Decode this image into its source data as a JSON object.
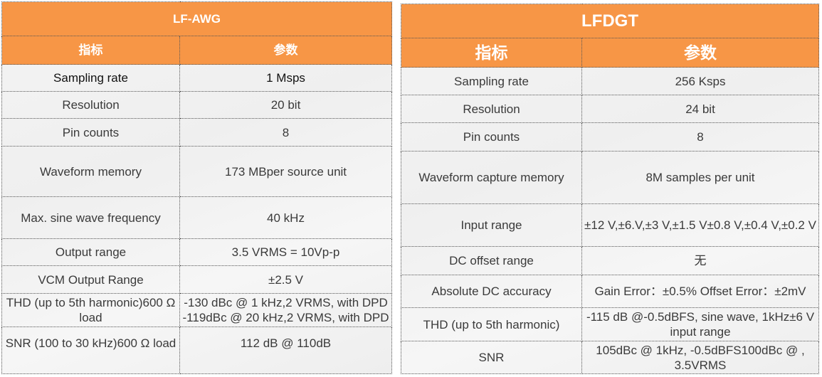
{
  "tables": [
    {
      "title": "LF-AWG",
      "headers": [
        "指标",
        "参数"
      ],
      "rows": [
        [
          "Sampling rate",
          "1 Msps"
        ],
        [
          "Resolution",
          "20 bit"
        ],
        [
          "Pin counts",
          "8"
        ],
        [
          "Waveform memory",
          "173 MBper source unit"
        ],
        [
          "Max. sine wave frequency",
          "40 kHz"
        ],
        [
          "Output range",
          "3.5 VRMS = 10Vp-p"
        ],
        [
          "VCM Output Range",
          "±2.5 V"
        ],
        [
          "THD (up to 5th harmonic)600 Ω load",
          "-130 dBc @ 1 kHz,2 VRMS, with DPD -119dBc @ 20 kHz,2 VRMS, with DPD"
        ],
        [
          "SNR (100 to 30 kHz)600 Ω load",
          "112 dB @ 110dB"
        ]
      ]
    },
    {
      "title": "LFDGT",
      "headers": [
        "指标",
        "参数"
      ],
      "rows": [
        [
          "Sampling rate",
          "256 Ksps"
        ],
        [
          "Resolution",
          "24 bit"
        ],
        [
          "Pin counts",
          "8"
        ],
        [
          "Waveform capture memory",
          "8M samples per unit"
        ],
        [
          "Input range",
          "±12 V,±6.V,±3 V,±1.5 V±0.8 V,±0.4 V,±0.2 V"
        ],
        [
          "DC offset range",
          "无"
        ],
        [
          "Absolute DC accuracy",
          "Gain Error：±0.5% Offset Error：±2mV"
        ],
        [
          "THD (up to 5th harmonic)",
          "-115 dB @-0.5dBFS, sine wave, 1kHz±6 V input range"
        ],
        [
          "SNR",
          "105dBc @ 1kHz, -0.5dBFS100dBc @ , 3.5VRMS"
        ]
      ]
    }
  ],
  "colors": {
    "header": "#f79646"
  }
}
